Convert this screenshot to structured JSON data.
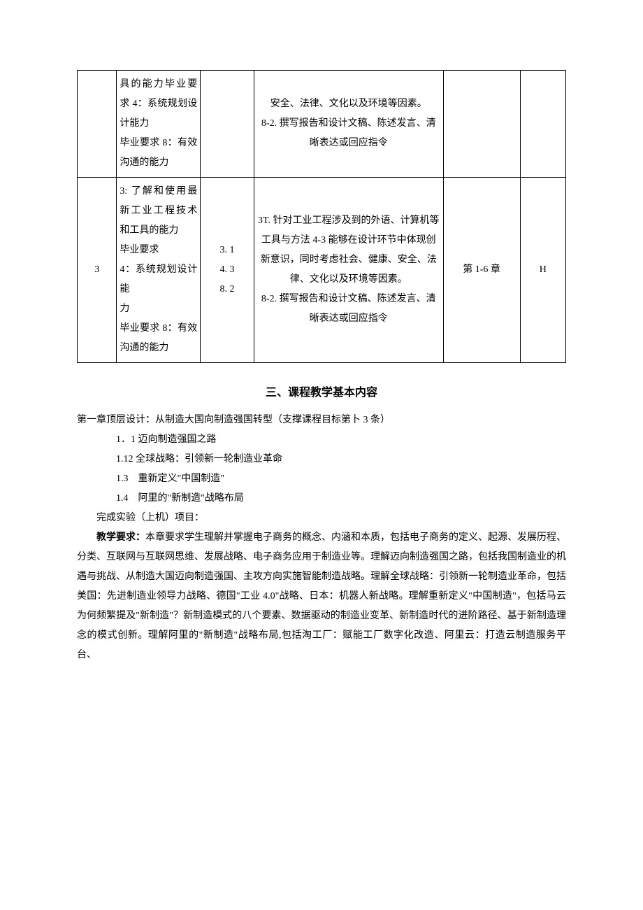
{
  "table": {
    "row1": {
      "idx": "",
      "req": "具的能力毕业要求 4：系统规划设计能力\n毕业要求 8：有效沟通的能力",
      "pts": "",
      "content": "安全、法律、文化以及环境等因素。\n8-2. 撰写报告和设计文稿、陈述发言、清晰表达或回应指令",
      "chap": "",
      "grade": ""
    },
    "row2": {
      "idx": "3",
      "req": "3: 了解和使用最新工业工程技术和工具的能力\n毕业要求\n4：系统规划设计能\n力\n毕业要求 8：有效沟通的能力",
      "pts": "3. 1\n4. 3\n8. 2",
      "content": "3T. 针对工业工程涉及到的外语、计算机等工具与方法 4-3 能够在设计环节中体现创新意识，同时考虑社会、健康、安全、法律、文化以及环境等因素。\n8-2. 撰写报告和设计文稿、陈述发言、清晰表达或回应指令",
      "chap": "第 1-6 章",
      "grade": "H"
    }
  },
  "section_heading": "三、课程教学基本内容",
  "chapter": {
    "title": "第一章顶层设计：从制造大国向制造强国转型（支撑课程目标第卜 3 条）",
    "items": [
      "1．1 迈向制造强国之路",
      "1.12 全球战略：引领新一轮制造业革命",
      "1.3　重新定义\"中国制造\"",
      "1.4　阿里的\"新制造\"战略布局"
    ],
    "lab": "完成实验（上机）项目：",
    "req_label": "教学要求：",
    "req_text": "本章要求学生理解并掌握电子商务的概念、内涵和本质，包括电子商务的定义、起源、发展历程、分类、互联网与互联网思维、发展战略、电子商务应用于制造业等。理解迈向制造强国之路，包括我国制造业的机遇与挑战、从制造大国迈向制造强国、主攻方向实施智能制造战略。理解全球战略：引领新一轮制造业革命，包括美国：先进制造业领导力战略、德国\"工业 4.0\"战略、日本：机器人新战略。理解重新定义\"中国制造\"，包括马云为何频繁提及\"新制造\"？新制造模式的八个要素、数据驱动的制造业变革、新制造时代的进阶路径、基于新制造理念的模式创新。理解阿里的\"新制造\"战略布局,包括淘工厂：赋能工厂数字化改造、阿里云：打造云制造服务平台、"
  }
}
